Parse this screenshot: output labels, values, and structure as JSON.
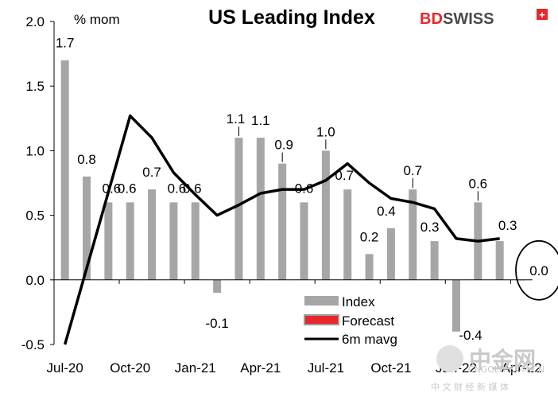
{
  "chart_data": {
    "type": "bar",
    "title": "US Leading Index",
    "ylabel": "% mom",
    "ylim": [
      -0.5,
      2.0
    ],
    "yticks": [
      "2.0",
      "1.5",
      "1.0",
      "0.5",
      "0.0",
      "-0.5"
    ],
    "categories": [
      "Jul-20",
      "Aug-20",
      "Sep-20",
      "Oct-20",
      "Nov-20",
      "Dec-20",
      "Jan-21",
      "Feb-21",
      "Mar-21",
      "Apr-21",
      "May-21",
      "Jun-21",
      "Jul-21",
      "Aug-21",
      "Sep-21",
      "Oct-21",
      "Nov-21",
      "Dec-21",
      "Jan-22",
      "Feb-22",
      "Mar-22",
      "Apr-22"
    ],
    "xtick_labels": [
      "Jul-20",
      "Oct-20",
      "Jan-21",
      "Apr-21",
      "Jul-21",
      "Oct-21",
      "Jan-22",
      "Apr-22"
    ],
    "series": [
      {
        "name": "Index",
        "color": "#a6a6a6",
        "values": [
          1.7,
          0.8,
          0.6,
          0.6,
          0.7,
          0.6,
          0.6,
          -0.1,
          1.1,
          1.1,
          0.9,
          0.6,
          1.0,
          0.7,
          0.2,
          0.4,
          0.7,
          0.3,
          -0.4,
          0.6,
          0.3,
          null
        ],
        "labels": [
          "1.7",
          "0.8",
          "0.6",
          "0.6",
          "0.7",
          "0.6",
          "0.6",
          "-0.1",
          "1.1",
          "1.1",
          "0.9",
          "0.6",
          "1.0",
          "0.7",
          "0.2",
          "0.4",
          "0.7",
          "0.3",
          "-0.4",
          "0.6",
          "0.3",
          ""
        ]
      },
      {
        "name": "Forecast",
        "color": "#e8262b",
        "values": [
          null,
          null,
          null,
          null,
          null,
          null,
          null,
          null,
          null,
          null,
          null,
          null,
          null,
          null,
          null,
          null,
          null,
          null,
          null,
          null,
          null,
          0.0
        ],
        "labels": [
          "",
          "",
          "",
          "",
          "",
          "",
          "",
          "",
          "",
          "",
          "",
          "",
          "",
          "",
          "",
          "",
          "",
          "",
          "",
          "",
          "",
          "0.0"
        ]
      },
      {
        "name": "6m mavg",
        "color": "#000000",
        "values": [
          -0.5,
          null,
          null,
          1.27,
          1.1,
          0.83,
          0.66,
          0.5,
          0.58,
          0.67,
          0.7,
          0.7,
          0.77,
          0.9,
          0.75,
          0.63,
          0.6,
          0.55,
          0.32,
          0.3,
          0.32,
          null
        ]
      }
    ],
    "legend": [
      "Index",
      "Forecast",
      "6m mavg"
    ],
    "annotation": "forecast value 0.0 circled"
  },
  "brand": {
    "bd": "BD",
    "swiss": "SWISS",
    "cross": "+",
    "red": "#e8262b",
    "grey": "#4a4a4a"
  },
  "watermark": {
    "main": "中金网",
    "sub": "中 文 财 经 新 媒 体",
    "url": "CNGOLD.COM.CN"
  }
}
